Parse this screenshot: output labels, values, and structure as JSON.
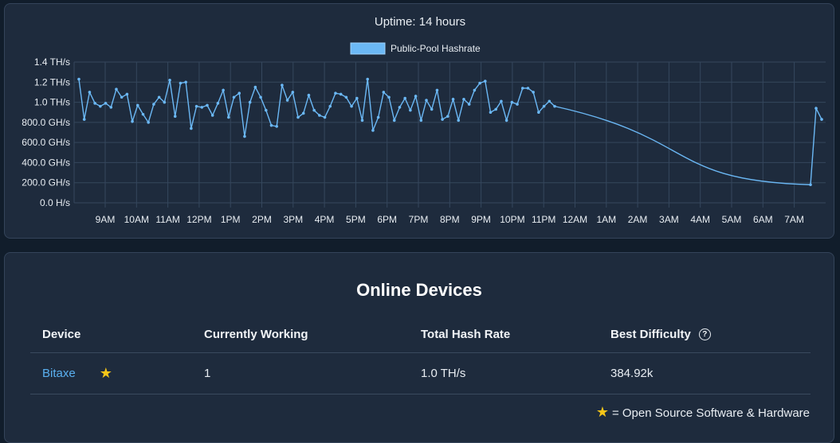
{
  "chart": {
    "uptime_text": "Uptime: 14 hours",
    "legend_label": "Public-Pool Hashrate",
    "legend_color": "#6bb8f5",
    "line_color": "#6bb8f5"
  },
  "chart_data": {
    "type": "line",
    "title": "Uptime: 14 hours",
    "series": [
      {
        "name": "Public-Pool Hashrate",
        "unit": "TH/s",
        "values": [
          1.23,
          0.83,
          1.1,
          0.99,
          0.96,
          0.99,
          0.95,
          1.13,
          1.05,
          1.08,
          0.81,
          0.97,
          0.88,
          0.8,
          0.98,
          1.05,
          1.0,
          1.22,
          0.86,
          1.19,
          1.2,
          0.74,
          0.96,
          0.95,
          0.97,
          0.87,
          0.99,
          1.12,
          0.85,
          1.05,
          1.09,
          0.66,
          1.0,
          1.15,
          1.05,
          0.92,
          0.77,
          0.76,
          1.17,
          1.02,
          1.1,
          0.85,
          0.89,
          1.07,
          0.92,
          0.87,
          0.85,
          0.96,
          1.09,
          1.08,
          1.05,
          0.96,
          1.04,
          0.82,
          1.23,
          0.72,
          0.85,
          1.1,
          1.05,
          0.82,
          0.95,
          1.04,
          0.92,
          1.06,
          0.82,
          1.02,
          0.93,
          1.12,
          0.83,
          0.86,
          1.03,
          0.82,
          1.03,
          0.98,
          1.12,
          1.19,
          1.21,
          0.9,
          0.93,
          1.01,
          0.82,
          1.0,
          0.98,
          1.14,
          1.14,
          1.1,
          0.9,
          0.96,
          1.01,
          0.96,
          0.18,
          0.94,
          0.83
        ],
        "x_positions_hours": []
      }
    ],
    "x_tick_labels": [
      "9AM",
      "10AM",
      "11AM",
      "12PM",
      "1PM",
      "2PM",
      "3PM",
      "4PM",
      "5PM",
      "6PM",
      "7PM",
      "8PM",
      "9PM",
      "10PM",
      "11PM",
      "12AM",
      "1AM",
      "2AM",
      "3AM",
      "4AM",
      "5AM",
      "6AM",
      "7AM"
    ],
    "y_tick_labels": [
      "0.0 H/s",
      "200.0 GH/s",
      "400.0 GH/s",
      "600.0 GH/s",
      "800.0 GH/s",
      "1.0 TH/s",
      "1.2 TH/s",
      "1.4 TH/s"
    ],
    "ylim": [
      0,
      1.4
    ],
    "grid": true,
    "legend_placement": "top-center"
  },
  "devices": {
    "title": "Online Devices",
    "headers": {
      "device": "Device",
      "working": "Currently Working",
      "hashrate": "Total Hash Rate",
      "difficulty": "Best Difficulty"
    },
    "rows": [
      {
        "device": "Bitaxe",
        "working": "1",
        "hashrate": "1.0 TH/s",
        "difficulty": "384.92k",
        "star_icon": "star-icon"
      }
    ],
    "footnote": "= Open Source Software & Hardware",
    "star_color": "#f5c518"
  }
}
